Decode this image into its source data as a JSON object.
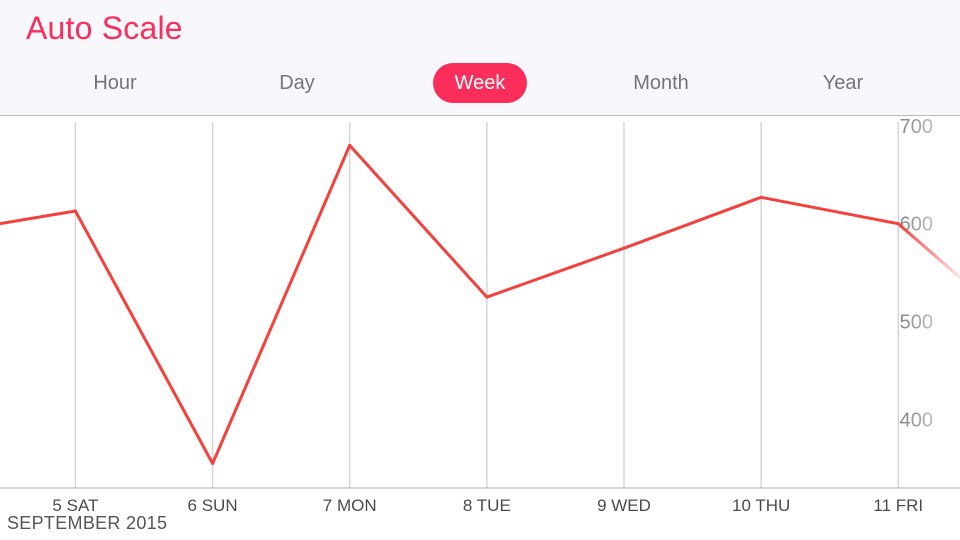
{
  "header": {
    "title": "Auto Scale",
    "tabs": [
      {
        "label": "Hour",
        "active": false
      },
      {
        "label": "Day",
        "active": false
      },
      {
        "label": "Week",
        "active": true
      },
      {
        "label": "Month",
        "active": false
      },
      {
        "label": "Year",
        "active": false
      }
    ]
  },
  "colors": {
    "accent": "#fb2d5b",
    "line": "#f5413d",
    "grid": "#d6d6d8",
    "header_bg": "#f8f8fc"
  },
  "chart_data": {
    "type": "line",
    "title": "",
    "xlabel": "SEPTEMBER 2015",
    "ylabel": "",
    "categories": [
      "5 SAT",
      "6 SUN",
      "7 MON",
      "8 TUE",
      "9 WED",
      "10 THU",
      "11 FRI"
    ],
    "x_range": [
      4.45,
      11.45
    ],
    "y_ticks": [
      400,
      500,
      600,
      700
    ],
    "ylim": [
      330,
      710
    ],
    "grid": "vertical",
    "series": [
      {
        "x": [
          4.45,
          5,
          6,
          7,
          8,
          9,
          10,
          11,
          11.45
        ],
        "values": [
          600,
          613,
          355,
          680,
          525,
          575,
          627,
          600,
          545
        ]
      }
    ]
  }
}
